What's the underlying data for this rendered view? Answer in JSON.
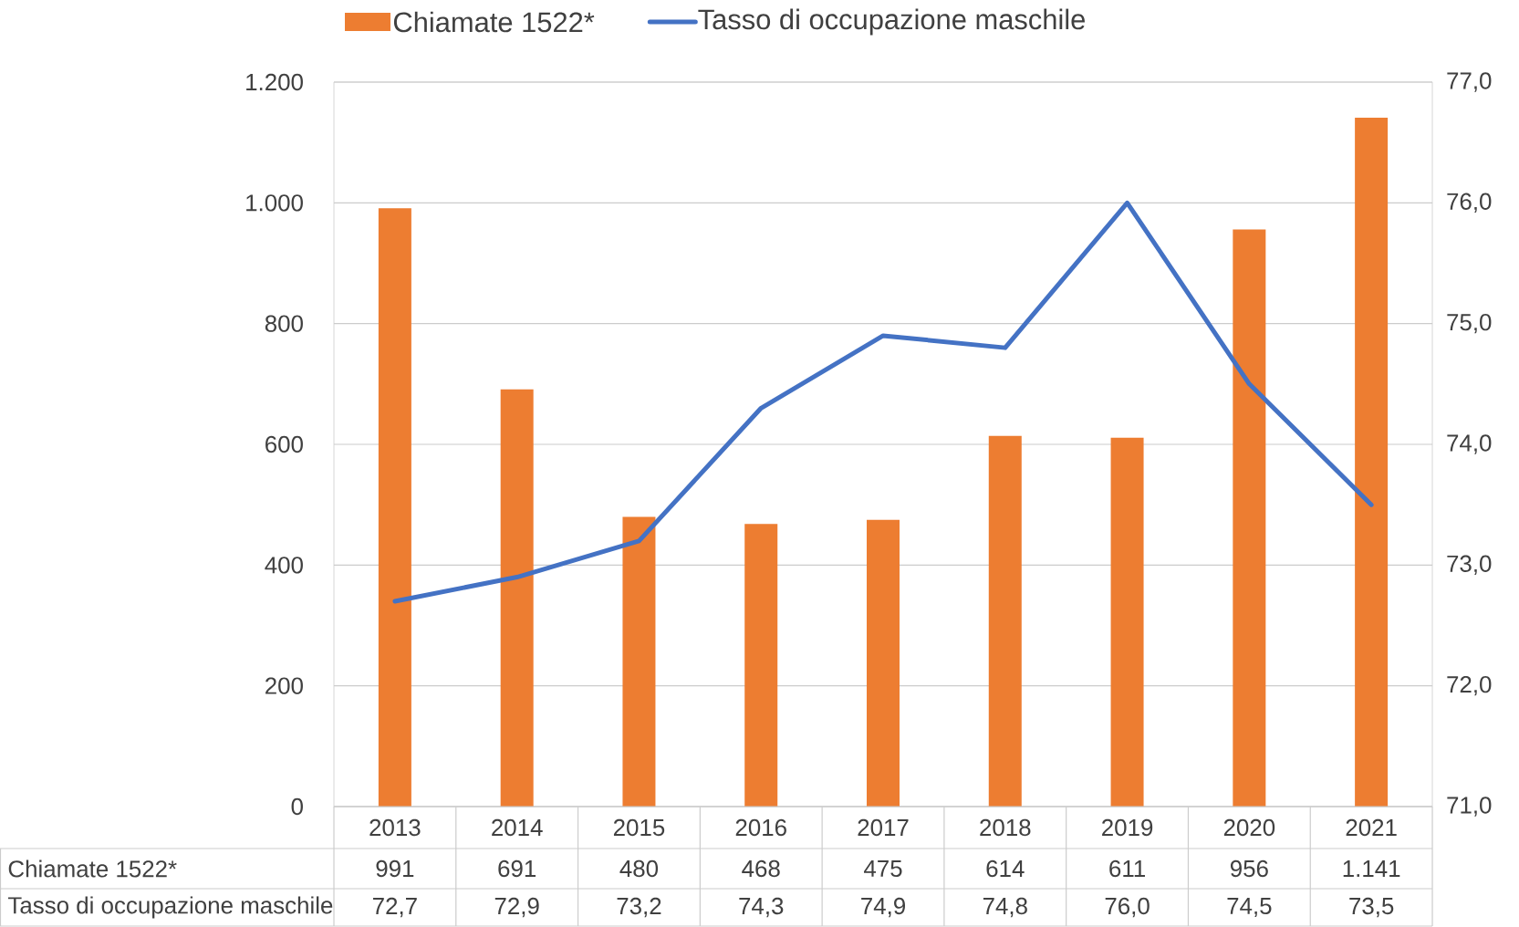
{
  "chart_data": {
    "type": "bar",
    "categories": [
      "2013",
      "2014",
      "2015",
      "2016",
      "2017",
      "2018",
      "2019",
      "2020",
      "2021"
    ],
    "series": [
      {
        "name": "Chiamate 1522*",
        "color": "#ed7d31",
        "values": [
          991,
          691,
          480,
          468,
          475,
          614,
          611,
          956,
          1141
        ],
        "value_labels": [
          "991",
          "691",
          "480",
          "468",
          "475",
          "614",
          "611",
          "956",
          "1.141"
        ]
      },
      {
        "name": "Tasso di occupazione maschile",
        "type": "line",
        "axis": "y2",
        "color": "#4472c4",
        "values": [
          72.7,
          72.9,
          73.2,
          74.3,
          74.9,
          74.8,
          76.0,
          74.5,
          73.5
        ],
        "value_labels": [
          "72,7",
          "72,9",
          "73,2",
          "74,3",
          "74,9",
          "74,8",
          "76,0",
          "74,5",
          "73,5"
        ]
      }
    ],
    "ylim": [
      0,
      1200
    ],
    "yticks": [
      0,
      200,
      400,
      600,
      800,
      {
        "value": 1000,
        "label": "1.000"
      },
      {
        "value": 1200,
        "label": "1.200"
      }
    ],
    "y2lim": [
      71,
      77
    ],
    "y2ticks": [
      {
        "value": 71,
        "label": "71,0"
      },
      {
        "value": 72,
        "label": "72,0"
      },
      {
        "value": 73,
        "label": "73,0"
      },
      {
        "value": 74,
        "label": "74,0"
      },
      {
        "value": 75,
        "label": "75,0"
      },
      {
        "value": 76,
        "label": "76,0"
      },
      {
        "value": 77,
        "label": "77,0"
      }
    ],
    "grid": true,
    "legend": "top"
  }
}
